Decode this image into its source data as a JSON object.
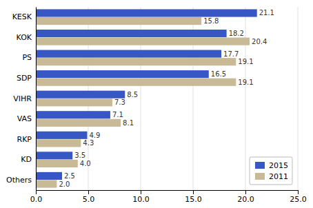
{
  "chart_data": {
    "type": "bar",
    "orientation": "horizontal",
    "categories": [
      "KESK",
      "KOK",
      "PS",
      "SDP",
      "VIHR",
      "VAS",
      "RKP",
      "KD",
      "Others"
    ],
    "series": [
      {
        "name": "2015",
        "color": "#3757C4",
        "values": [
          21.1,
          18.2,
          17.7,
          16.5,
          8.5,
          7.1,
          4.9,
          3.5,
          2.5
        ]
      },
      {
        "name": "2011",
        "color": "#C8BA96",
        "values": [
          15.8,
          20.4,
          19.1,
          19.1,
          7.3,
          8.1,
          4.3,
          4.0,
          2.0
        ],
        "value_labels": [
          "15.8",
          "20.4",
          "19.1",
          "19.1",
          "7.3",
          "8.1",
          "4.3",
          "4.0",
          "2.0"
        ]
      }
    ],
    "xlim": [
      0,
      25.0
    ],
    "xticks": [
      {
        "value": 0.0,
        "label": "0.0"
      },
      {
        "value": 5.0,
        "label": "5.0"
      },
      {
        "value": 10.0,
        "label": "10.0"
      },
      {
        "value": 15.0,
        "label": "15.0"
      },
      {
        "value": 20.0,
        "label": "20.0"
      },
      {
        "value": 25.0,
        "label": "25.0"
      }
    ],
    "grid": true,
    "legend": "lower right",
    "data_labels": true
  }
}
